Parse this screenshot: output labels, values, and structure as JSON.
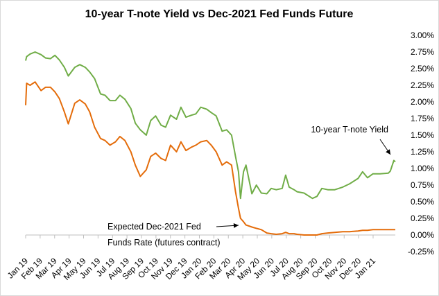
{
  "chart_data": {
    "type": "line",
    "title": "10-year T-note Yield vs Dec-2021 Fed Funds Future",
    "xlabel": "",
    "ylabel": "",
    "x_tick_labels": [
      "Jan 19",
      "Feb 19",
      "Mar 19",
      "Apr 19",
      "May 19",
      "Jun 19",
      "Jul 19",
      "Aug 19",
      "Sep 19",
      "Oct 19",
      "Nov 19",
      "Dec 19",
      "Jan 20",
      "Feb 20",
      "Mar 20",
      "Apr 20",
      "May 20",
      "Jun 20",
      "Jul 20",
      "Aug 20",
      "Sep 20",
      "Oct 20",
      "Nov 20",
      "Dec 20",
      "Jan 21"
    ],
    "y_tick_labels": [
      "-0.25%",
      "0.00%",
      "0.25%",
      "0.50%",
      "0.75%",
      "1.00%",
      "1.25%",
      "1.50%",
      "1.75%",
      "2.00%",
      "2.25%",
      "2.50%",
      "2.75%",
      "3.00%"
    ],
    "ylim": [
      -0.25,
      3.0
    ],
    "grid": false,
    "colors": {
      "tnote": "#70ad47",
      "fedfunds": "#e46c0a",
      "axis": "#bfbfbf"
    },
    "series": [
      {
        "name": "10-year T-note Yield",
        "color": "#70ad47",
        "x": [
          "2019-01-01",
          "2019-01-03",
          "2019-01-10",
          "2019-01-20",
          "2019-02-01",
          "2019-02-10",
          "2019-02-20",
          "2019-03-01",
          "2019-03-10",
          "2019-03-20",
          "2019-03-28",
          "2019-04-10",
          "2019-04-20",
          "2019-05-01",
          "2019-05-10",
          "2019-05-20",
          "2019-06-01",
          "2019-06-10",
          "2019-06-20",
          "2019-07-01",
          "2019-07-10",
          "2019-07-20",
          "2019-08-01",
          "2019-08-10",
          "2019-08-20",
          "2019-09-01",
          "2019-09-10",
          "2019-09-20",
          "2019-10-01",
          "2019-10-10",
          "2019-10-20",
          "2019-11-01",
          "2019-11-10",
          "2019-11-20",
          "2019-12-01",
          "2019-12-10",
          "2019-12-20",
          "2020-01-01",
          "2020-01-10",
          "2020-01-20",
          "2020-02-01",
          "2020-02-10",
          "2020-02-20",
          "2020-02-28",
          "2020-03-05",
          "2020-03-09",
          "2020-03-15",
          "2020-03-20",
          "2020-04-01",
          "2020-04-10",
          "2020-04-20",
          "2020-05-01",
          "2020-05-10",
          "2020-05-20",
          "2020-06-01",
          "2020-06-08",
          "2020-06-15",
          "2020-06-25",
          "2020-07-01",
          "2020-07-15",
          "2020-08-01",
          "2020-08-10",
          "2020-08-20",
          "2020-09-01",
          "2020-09-15",
          "2020-10-01",
          "2020-10-15",
          "2020-11-01",
          "2020-11-10",
          "2020-11-20",
          "2020-12-01",
          "2020-12-15",
          "2021-01-01",
          "2021-01-05",
          "2021-01-12",
          "2021-01-15"
        ],
        "values": [
          2.62,
          2.68,
          2.72,
          2.75,
          2.71,
          2.66,
          2.65,
          2.7,
          2.63,
          2.52,
          2.39,
          2.52,
          2.56,
          2.52,
          2.45,
          2.35,
          2.12,
          2.1,
          2.02,
          2.02,
          2.1,
          2.04,
          1.9,
          1.68,
          1.58,
          1.5,
          1.72,
          1.79,
          1.65,
          1.62,
          1.8,
          1.74,
          1.92,
          1.77,
          1.8,
          1.82,
          1.92,
          1.89,
          1.84,
          1.79,
          1.56,
          1.58,
          1.5,
          1.18,
          0.95,
          0.55,
          0.95,
          1.05,
          0.62,
          0.75,
          0.63,
          0.62,
          0.7,
          0.68,
          0.7,
          0.9,
          0.72,
          0.68,
          0.65,
          0.63,
          0.55,
          0.58,
          0.7,
          0.68,
          0.68,
          0.72,
          0.77,
          0.85,
          0.95,
          0.86,
          0.92,
          0.92,
          0.93,
          0.96,
          1.12,
          1.1
        ]
      },
      {
        "name": "Expected Dec-2021 Fed Funds Rate (futures contract)",
        "color": "#e46c0a",
        "x": [
          "2019-01-01",
          "2019-01-03",
          "2019-01-10",
          "2019-01-20",
          "2019-02-01",
          "2019-02-10",
          "2019-02-20",
          "2019-03-01",
          "2019-03-10",
          "2019-03-20",
          "2019-03-28",
          "2019-04-10",
          "2019-04-20",
          "2019-05-01",
          "2019-05-10",
          "2019-05-20",
          "2019-06-01",
          "2019-06-10",
          "2019-06-20",
          "2019-07-01",
          "2019-07-10",
          "2019-07-20",
          "2019-08-01",
          "2019-08-10",
          "2019-08-20",
          "2019-09-01",
          "2019-09-10",
          "2019-09-20",
          "2019-10-01",
          "2019-10-10",
          "2019-10-20",
          "2019-11-01",
          "2019-11-10",
          "2019-11-20",
          "2019-12-01",
          "2019-12-10",
          "2019-12-20",
          "2020-01-01",
          "2020-01-10",
          "2020-01-20",
          "2020-02-01",
          "2020-02-10",
          "2020-02-20",
          "2020-02-28",
          "2020-03-05",
          "2020-03-09",
          "2020-03-15",
          "2020-03-20",
          "2020-04-01",
          "2020-04-10",
          "2020-04-20",
          "2020-05-01",
          "2020-05-10",
          "2020-05-20",
          "2020-06-01",
          "2020-06-08",
          "2020-06-15",
          "2020-06-25",
          "2020-07-01",
          "2020-07-15",
          "2020-08-01",
          "2020-08-10",
          "2020-08-20",
          "2020-09-01",
          "2020-09-15",
          "2020-10-01",
          "2020-10-15",
          "2020-11-01",
          "2020-11-10",
          "2020-11-20",
          "2020-12-01",
          "2020-12-15",
          "2021-01-01",
          "2021-01-05",
          "2021-01-12",
          "2021-01-15"
        ],
        "values": [
          1.95,
          2.28,
          2.25,
          2.3,
          2.17,
          2.22,
          2.22,
          2.15,
          2.05,
          1.85,
          1.67,
          1.98,
          2.03,
          1.97,
          1.85,
          1.62,
          1.45,
          1.42,
          1.35,
          1.4,
          1.48,
          1.42,
          1.25,
          1.05,
          0.88,
          0.98,
          1.18,
          1.23,
          1.15,
          1.12,
          1.35,
          1.25,
          1.4,
          1.27,
          1.32,
          1.35,
          1.4,
          1.42,
          1.35,
          1.25,
          1.05,
          1.1,
          1.05,
          0.65,
          0.4,
          0.25,
          0.2,
          0.15,
          0.12,
          0.1,
          0.08,
          0.03,
          0.02,
          0.01,
          0.02,
          0.04,
          0.02,
          0.02,
          0.01,
          0.0,
          0.0,
          0.0,
          0.02,
          0.03,
          0.04,
          0.05,
          0.05,
          0.06,
          0.07,
          0.07,
          0.08,
          0.08,
          0.08,
          0.08,
          0.08,
          0.08
        ]
      }
    ],
    "annotations": [
      {
        "lines": [
          "10-year T-note Yield"
        ],
        "series": "10-year T-note Yield"
      },
      {
        "lines": [
          "Expected Dec-2021 Fed",
          "Funds Rate (futures contract)"
        ],
        "series": "Expected Dec-2021 Fed Funds Rate (futures contract)"
      }
    ]
  }
}
